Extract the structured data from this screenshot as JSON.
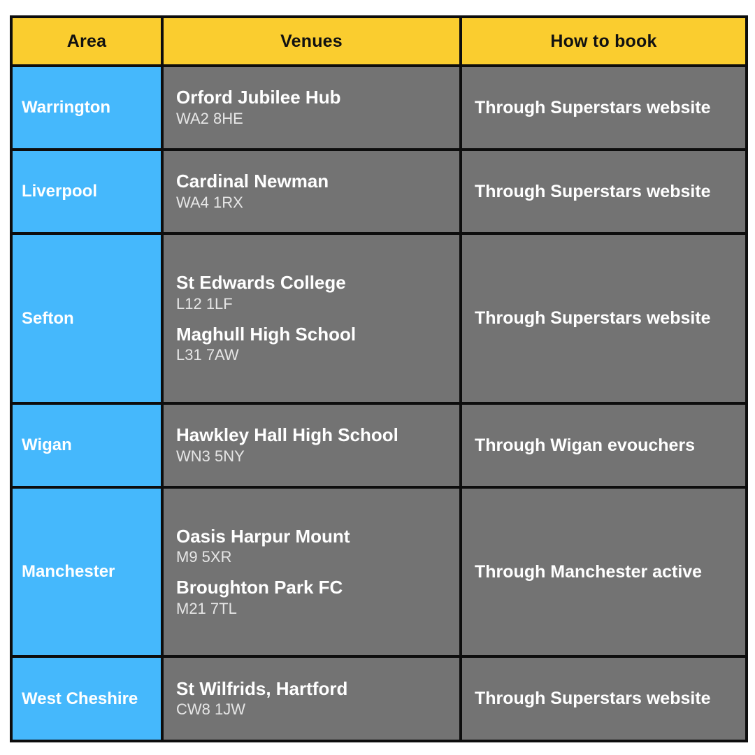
{
  "table": {
    "headers": [
      {
        "label": "Area"
      },
      {
        "label": "Venues"
      },
      {
        "label": "How to book"
      }
    ],
    "rows": [
      {
        "area": "Warrington",
        "venues": [
          {
            "name": "Orford Jubilee Hub",
            "postcode": "WA2 8HE"
          }
        ],
        "booking": "Through Superstars website"
      },
      {
        "area": "Liverpool",
        "venues": [
          {
            "name": "Cardinal Newman",
            "postcode": "WA4 1RX"
          }
        ],
        "booking": "Through Superstars website"
      },
      {
        "area": "Sefton",
        "venues": [
          {
            "name": "St Edwards College",
            "postcode": "L12 1LF"
          },
          {
            "name": "Maghull High School",
            "postcode": "L31 7AW"
          }
        ],
        "booking": "Through Superstars website"
      },
      {
        "area": "Wigan",
        "venues": [
          {
            "name": "Hawkley Hall High School",
            "postcode": "WN3 5NY"
          }
        ],
        "booking": "Through Wigan evouchers"
      },
      {
        "area": "Manchester",
        "venues": [
          {
            "name": "Oasis Harpur Mount",
            "postcode": "M9 5XR"
          },
          {
            "name": "Broughton Park FC",
            "postcode": "M21 7TL"
          }
        ],
        "booking": "Through Manchester active"
      },
      {
        "area": "West Cheshire",
        "venues": [
          {
            "name": "St Wilfrids, Hartford",
            "postcode": "CW8 1JW"
          }
        ],
        "booking": "Through Superstars website"
      }
    ],
    "colors": {
      "header_bg": "#facd2f",
      "area_bg": "#45b8fc",
      "cell_bg": "#737373",
      "border": "#0d0d0d",
      "header_text": "#111111",
      "cell_text": "#ffffff",
      "postcode_text": "#e6e6e6"
    }
  }
}
